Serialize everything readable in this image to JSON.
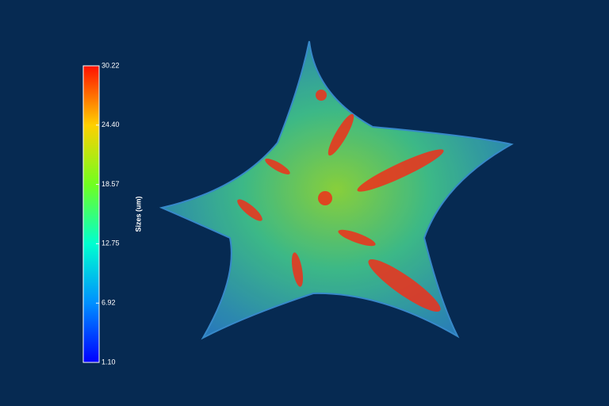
{
  "colorbar": {
    "label": "Sizes (um)",
    "lim": [
      1.1,
      30.22
    ],
    "ticks": [
      {
        "value": 1.1,
        "label": "1.10"
      },
      {
        "value": 6.92,
        "label": "6.92"
      },
      {
        "value": 12.75,
        "label": "12.75"
      },
      {
        "value": 18.57,
        "label": "18.57"
      },
      {
        "value": 24.4,
        "label": "24.40"
      },
      {
        "value": 30.22,
        "label": "30.22"
      }
    ]
  }
}
